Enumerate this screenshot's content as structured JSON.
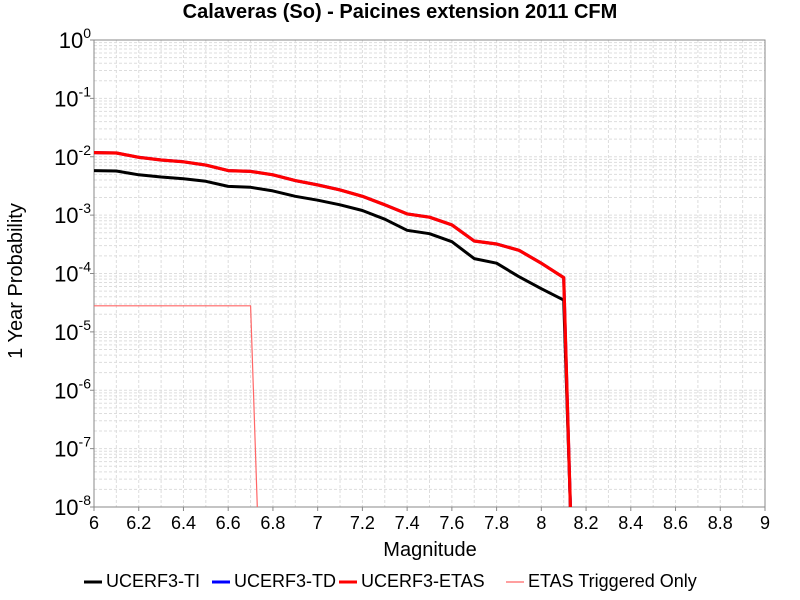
{
  "chart_data": {
    "type": "line",
    "title": "Calaveras (So) - Paicines extension 2011 CFM",
    "xlabel": "Magnitude",
    "ylabel": "1 Year Probability",
    "xlim": [
      6,
      9
    ],
    "ylim": [
      1e-08,
      1
    ],
    "yscale": "log",
    "grid": true,
    "legend_position": "bottom",
    "x_ticks": [
      "6",
      "6.2",
      "6.4",
      "6.6",
      "6.8",
      "7",
      "7.2",
      "7.4",
      "7.6",
      "7.8",
      "8",
      "8.2",
      "8.4",
      "8.6",
      "8.8",
      "9"
    ],
    "y_ticks": [
      {
        "base": "10",
        "exp": "0",
        "value": 1
      },
      {
        "base": "10",
        "exp": "-1",
        "value": 0.1
      },
      {
        "base": "10",
        "exp": "-2",
        "value": 0.01
      },
      {
        "base": "10",
        "exp": "-3",
        "value": 0.001
      },
      {
        "base": "10",
        "exp": "-4",
        "value": 0.0001
      },
      {
        "base": "10",
        "exp": "-5",
        "value": 1e-05
      },
      {
        "base": "10",
        "exp": "-6",
        "value": 1e-06
      },
      {
        "base": "10",
        "exp": "-7",
        "value": 1e-07
      },
      {
        "base": "10",
        "exp": "-8",
        "value": 1e-08
      }
    ],
    "series": [
      {
        "name": "UCERF3-TI",
        "color": "#000000",
        "x": [
          6.0,
          6.1,
          6.2,
          6.3,
          6.4,
          6.5,
          6.6,
          6.7,
          6.8,
          6.9,
          7.0,
          7.1,
          7.2,
          7.3,
          7.4,
          7.5,
          7.6,
          7.7,
          7.8,
          7.9,
          8.0,
          8.1,
          8.13
        ],
        "y": [
          0.0058,
          0.0057,
          0.0049,
          0.0045,
          0.0042,
          0.0038,
          0.0031,
          0.003,
          0.0026,
          0.0021,
          0.0018,
          0.0015,
          0.0012,
          0.00085,
          0.00055,
          0.00048,
          0.00035,
          0.00018,
          0.00015,
          8.8e-05,
          5.5e-05,
          3.5e-05,
          1e-08
        ]
      },
      {
        "name": "UCERF3-TD",
        "color": "#0000ff",
        "x": [
          6.0,
          6.1,
          6.2,
          6.3,
          6.4,
          6.5,
          6.6,
          6.7,
          6.8,
          6.9,
          7.0,
          7.1,
          7.2,
          7.3,
          7.4,
          7.5,
          7.6,
          7.7,
          7.8,
          7.9,
          8.0,
          8.1,
          8.13
        ],
        "y": [
          0.0118,
          0.0116,
          0.0098,
          0.0088,
          0.0082,
          0.0072,
          0.0058,
          0.0056,
          0.0049,
          0.0039,
          0.0033,
          0.0027,
          0.0021,
          0.0015,
          0.00105,
          0.00092,
          0.00068,
          0.00036,
          0.00032,
          0.00025,
          0.00015,
          8.5e-05,
          1e-08
        ]
      },
      {
        "name": "UCERF3-ETAS",
        "color": "#ff0000",
        "x": [
          6.0,
          6.1,
          6.2,
          6.3,
          6.4,
          6.5,
          6.6,
          6.7,
          6.8,
          6.9,
          7.0,
          7.1,
          7.2,
          7.3,
          7.4,
          7.5,
          7.6,
          7.7,
          7.8,
          7.9,
          8.0,
          8.1,
          8.13
        ],
        "y": [
          0.0118,
          0.0116,
          0.0098,
          0.0088,
          0.0082,
          0.0072,
          0.0058,
          0.0056,
          0.0049,
          0.0039,
          0.0033,
          0.0027,
          0.0021,
          0.0015,
          0.00105,
          0.00092,
          0.00068,
          0.00036,
          0.00032,
          0.00025,
          0.00015,
          8.5e-05,
          1e-08
        ]
      },
      {
        "name": "ETAS Triggered Only",
        "color": "#ff6666",
        "x": [
          6.0,
          6.7,
          6.73
        ],
        "y": [
          2.8e-05,
          2.8e-05,
          1e-08
        ]
      }
    ]
  }
}
